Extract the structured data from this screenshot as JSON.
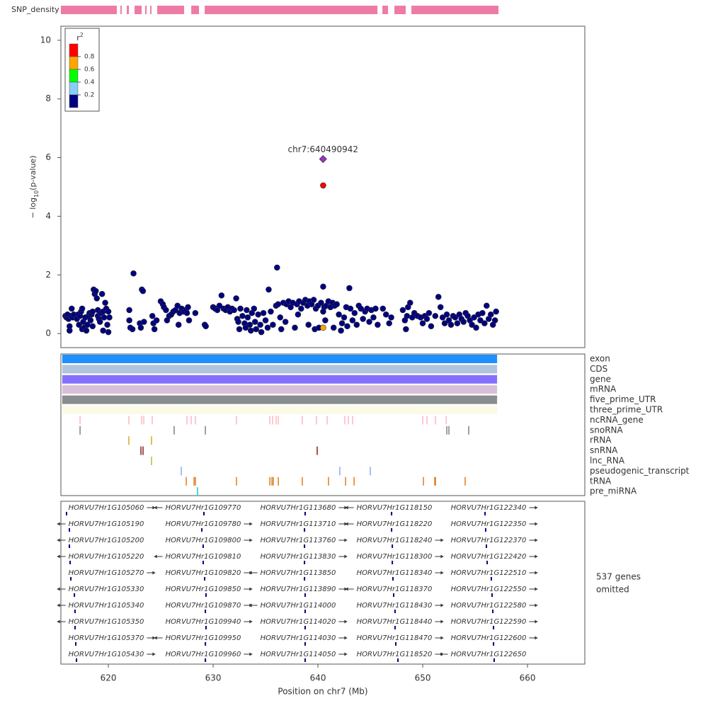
{
  "chart_data": {
    "type": "scatter",
    "snp_density_label": "SNP_density",
    "snp_density_color": "#ee7ba5",
    "snp_density_segments": [
      [
        615.47,
        620.81
      ],
      [
        621.15,
        621.28
      ],
      [
        621.76,
        621.96
      ],
      [
        622.5,
        623.18
      ],
      [
        623.51,
        623.65
      ],
      [
        623.99,
        624.12
      ],
      [
        624.66,
        627.23
      ],
      [
        627.91,
        628.65
      ],
      [
        629.19,
        645.68
      ],
      [
        646.15,
        646.69
      ],
      [
        647.3,
        648.38
      ],
      [
        648.92,
        657.23
      ]
    ],
    "ylabel_prefix": "− log",
    "ylabel_sub": "10",
    "ylabel_suffix": "(p-value)",
    "xlabel": "Position on chr7 (Mb)",
    "xlim": [
      615.47,
      665.47
    ],
    "xticks": [
      620,
      630,
      640,
      650,
      660
    ],
    "ylim": [
      -0.48,
      10.48
    ],
    "yticks": [
      0,
      2,
      4,
      6,
      8,
      10
    ],
    "legend": {
      "title": "r",
      "title_sup": "2",
      "lim": [
        0,
        1
      ],
      "colors": [
        "#ff0000",
        "#ffa500",
        "#00ff00",
        "#87cefa",
        "#000080"
      ],
      "ticks": [
        0.8,
        0.6,
        0.4,
        0.2
      ]
    },
    "series": [
      {
        "color": "#000080",
        "shape": "circle",
        "x": [
          615.9,
          616.0,
          616.1,
          616.2,
          616.3,
          616.3,
          616.4,
          616.5,
          616.6,
          616.7,
          617.0,
          617.1,
          617.2,
          617.3,
          617.4,
          617.5,
          617.5,
          617.6,
          617.7,
          617.8,
          617.9,
          618.0,
          618.1,
          618.2,
          618.3,
          618.4,
          618.5,
          618.5,
          618.6,
          618.7,
          618.8,
          618.9,
          619.0,
          619.0,
          619.1,
          619.2,
          619.3,
          619.4,
          619.5,
          619.5,
          619.6,
          619.7,
          619.8,
          619.9,
          620.0,
          620.0,
          620.1,
          622.0,
          622.0,
          622.1,
          622.3,
          622.4,
          623.0,
          623.1,
          623.2,
          623.3,
          623.4,
          624.2,
          624.3,
          624.4,
          624.6,
          625.0,
          625.2,
          625.3,
          625.5,
          625.6,
          625.8,
          626.0,
          626.2,
          626.4,
          626.6,
          626.7,
          626.8,
          627.0,
          627.2,
          627.4,
          627.5,
          627.6,
          627.7,
          628.3,
          629.2,
          629.3,
          630.0,
          630.2,
          630.4,
          630.6,
          630.8,
          631.0,
          631.2,
          631.4,
          631.6,
          631.8,
          632.0,
          632.2,
          632.3,
          632.4,
          632.5,
          632.6,
          632.8,
          633.0,
          633.1,
          633.2,
          633.3,
          633.5,
          633.6,
          633.7,
          633.9,
          634.0,
          634.1,
          634.3,
          634.5,
          634.6,
          634.8,
          635.0,
          635.2,
          635.3,
          635.5,
          635.7,
          636.0,
          636.1,
          636.2,
          636.4,
          636.5,
          636.7,
          636.9,
          637.0,
          637.2,
          637.4,
          637.6,
          637.8,
          638.0,
          638.1,
          638.2,
          638.4,
          638.6,
          638.8,
          639.0,
          639.1,
          639.2,
          639.4,
          639.6,
          639.7,
          639.8,
          640.0,
          640.1,
          640.3,
          640.5,
          640.5,
          640.6,
          640.7,
          640.8,
          641.0,
          641.2,
          641.4,
          641.5,
          641.6,
          641.8,
          642.0,
          642.2,
          642.3,
          642.5,
          642.7,
          642.8,
          643.0,
          643.1,
          643.3,
          643.5,
          643.7,
          643.9,
          644.1,
          644.3,
          644.5,
          644.7,
          644.9,
          645.1,
          645.3,
          645.5,
          645.7,
          646.2,
          646.5,
          646.8,
          647.0,
          648.1,
          648.3,
          648.4,
          648.5,
          648.6,
          648.8,
          649.0,
          649.2,
          649.5,
          649.8,
          650.0,
          650.2,
          650.4,
          650.6,
          650.8,
          651.2,
          651.5,
          651.7,
          651.9,
          652.1,
          652.3,
          652.5,
          652.7,
          652.9,
          653.1,
          653.3,
          653.5,
          653.7,
          653.9,
          654.1,
          654.3,
          654.5,
          654.7,
          654.9,
          655.1,
          655.3,
          655.5,
          655.7,
          655.9,
          656.1,
          656.3,
          656.5,
          656.7,
          656.9,
          657.0
        ],
        "values": [
          0.6,
          0.55,
          0.65,
          0.5,
          0.1,
          0.25,
          0.6,
          0.85,
          0.55,
          0.65,
          0.5,
          0.65,
          0.3,
          0.6,
          0.75,
          0.85,
          0.15,
          0.4,
          0.2,
          0.55,
          0.1,
          0.3,
          0.6,
          0.7,
          0.45,
          0.65,
          0.75,
          0.25,
          1.5,
          1.35,
          1.45,
          1.2,
          0.6,
          0.8,
          0.5,
          0.4,
          0.7,
          1.35,
          0.1,
          0.75,
          0.55,
          1.05,
          0.85,
          0.3,
          0.75,
          0.05,
          0.55,
          0.8,
          0.45,
          0.2,
          0.15,
          2.05,
          0.35,
          0.2,
          1.5,
          1.45,
          0.4,
          0.6,
          0.35,
          0.15,
          0.45,
          1.1,
          1.0,
          0.9,
          0.8,
          0.45,
          0.6,
          0.65,
          0.75,
          0.8,
          0.95,
          0.3,
          0.7,
          0.85,
          0.75,
          0.8,
          0.7,
          0.9,
          0.45,
          0.7,
          0.3,
          0.25,
          0.9,
          0.85,
          0.8,
          0.95,
          1.3,
          0.85,
          0.8,
          0.9,
          0.75,
          0.85,
          0.8,
          1.2,
          0.5,
          0.4,
          0.15,
          0.85,
          0.6,
          0.35,
          0.2,
          0.8,
          0.55,
          0.3,
          0.1,
          0.7,
          0.85,
          0.4,
          0.15,
          0.65,
          0.3,
          0.05,
          0.7,
          0.45,
          0.2,
          1.5,
          0.75,
          0.3,
          0.95,
          2.25,
          1.0,
          0.55,
          0.15,
          1.05,
          0.4,
          1.0,
          1.1,
          0.9,
          1.05,
          0.2,
          1.0,
          0.65,
          1.1,
          0.85,
          1.05,
          1.15,
          0.95,
          0.3,
          1.1,
          1.0,
          1.15,
          0.15,
          0.85,
          0.95,
          0.2,
          1.05,
          1.6,
          0.75,
          0.9,
          0.45,
          0.95,
          1.1,
          0.9,
          1.05,
          0.2,
          0.95,
          1.0,
          0.65,
          0.1,
          0.35,
          0.55,
          0.9,
          0.25,
          1.55,
          0.85,
          0.45,
          0.7,
          0.3,
          0.95,
          0.85,
          0.5,
          0.75,
          0.85,
          0.4,
          0.8,
          0.55,
          0.85,
          0.3,
          0.85,
          0.65,
          0.35,
          0.55,
          0.8,
          0.45,
          0.15,
          0.6,
          0.9,
          1.05,
          0.55,
          0.7,
          0.6,
          0.55,
          0.35,
          0.6,
          0.5,
          0.7,
          0.25,
          0.6,
          1.25,
          0.9,
          0.55,
          0.35,
          0.65,
          0.45,
          0.3,
          0.6,
          0.55,
          0.35,
          0.65,
          0.5,
          0.4,
          0.7,
          0.6,
          0.45,
          0.3,
          0.55,
          0.2,
          0.65,
          0.45,
          0.7,
          0.35,
          0.95,
          0.5,
          0.65,
          0.3,
          0.45,
          0.75
        ]
      },
      {
        "color": "#ffa500",
        "shape": "circle",
        "x": [
          640.5
        ],
        "values": [
          0.2
        ]
      },
      {
        "color": "#ff0000",
        "shape": "circle",
        "x": [
          640.5
        ],
        "values": [
          5.05
        ]
      },
      {
        "color": "#9932cc",
        "shape": "diamond",
        "x": [
          640.49
        ],
        "values": [
          5.95
        ],
        "label": "chr7:640490942"
      }
    ],
    "tracks": [
      {
        "name": "exon",
        "color": "#1e90ff",
        "range": [
          615.6,
          657.1
        ]
      },
      {
        "name": "CDS",
        "color": "#b0c4de",
        "range": [
          615.6,
          657.1
        ]
      },
      {
        "name": "gene",
        "color": "#8470ff",
        "range": [
          615.6,
          657.1
        ]
      },
      {
        "name": "mRNA",
        "color": "#d8bfd8",
        "range": [
          615.6,
          657.1
        ]
      },
      {
        "name": "five_prime_UTR",
        "color": "#878c8c",
        "range": [
          615.6,
          657.1
        ]
      },
      {
        "name": "three_prime_UTR",
        "color": "#fafae6",
        "range": [
          615.6,
          657.1
        ]
      },
      {
        "name": "ncRNA_gene",
        "color": "#ffb6c1",
        "positions": [
          617.3,
          621.96,
          623.18,
          623.38,
          624.19,
          627.5,
          627.91,
          628.31,
          632.23,
          635.41,
          635.68,
          636.01,
          636.22,
          638.51,
          639.86,
          640.88,
          642.57,
          642.91,
          643.31,
          650.0,
          650.41,
          651.22,
          652.24
        ]
      },
      {
        "name": "snoRNA",
        "color": "#808080",
        "positions": [
          617.3,
          626.28,
          629.26,
          652.3,
          652.5,
          654.39
        ]
      },
      {
        "name": "rRNA",
        "color": "#daa520",
        "positions": [
          621.96,
          624.12
        ]
      },
      {
        "name": "snRNA",
        "color": "#8b1a1a",
        "positions": [
          623.11,
          623.31,
          639.93
        ]
      },
      {
        "name": "lnc_RNA",
        "color": "#9acd32",
        "positions": [
          624.12
        ]
      },
      {
        "name": "pseudogenic_transcript",
        "color": "#87aee6",
        "positions": [
          626.96,
          642.09,
          645.0
        ]
      },
      {
        "name": "tRNA",
        "color": "#e07b20",
        "positions": [
          627.43,
          628.18,
          628.31,
          632.23,
          635.41,
          635.61,
          635.74,
          636.22,
          638.51,
          641.01,
          642.64,
          643.45,
          650.07,
          651.15,
          651.22,
          654.05
        ]
      },
      {
        "name": "pre_miRNA",
        "color": "#00ced1",
        "positions": [
          628.51
        ]
      }
    ],
    "genes": [
      {
        "name": "HORVU7Hr1G105060",
        "pos": 616.01,
        "strand": "+"
      },
      {
        "name": "HORVU7Hr1G105190",
        "pos": 616.28,
        "strand": "-"
      },
      {
        "name": "HORVU7Hr1G105200",
        "pos": 616.28,
        "strand": "-"
      },
      {
        "name": "HORVU7Hr1G105220",
        "pos": 616.35,
        "strand": "-"
      },
      {
        "name": "HORVU7Hr1G105270",
        "pos": 616.42,
        "strand": "+"
      },
      {
        "name": "HORVU7Hr1G105330",
        "pos": 616.76,
        "strand": "-"
      },
      {
        "name": "HORVU7Hr1G105340",
        "pos": 616.82,
        "strand": "-"
      },
      {
        "name": "HORVU7Hr1G105350",
        "pos": 616.82,
        "strand": "-"
      },
      {
        "name": "HORVU7Hr1G105370",
        "pos": 616.89,
        "strand": "+"
      },
      {
        "name": "HORVU7Hr1G105430",
        "pos": 616.96,
        "strand": "+"
      },
      {
        "name": "HORVU7Hr1G109770",
        "pos": 629.12,
        "strand": "-"
      },
      {
        "name": "HORVU7Hr1G109780",
        "pos": 628.92,
        "strand": "+"
      },
      {
        "name": "HORVU7Hr1G109800",
        "pos": 629.05,
        "strand": "+"
      },
      {
        "name": "HORVU7Hr1G109810",
        "pos": 629.05,
        "strand": "-"
      },
      {
        "name": "HORVU7Hr1G109820",
        "pos": 629.19,
        "strand": "+"
      },
      {
        "name": "HORVU7Hr1G109850",
        "pos": 629.32,
        "strand": "+"
      },
      {
        "name": "HORVU7Hr1G109870",
        "pos": 629.26,
        "strand": "+"
      },
      {
        "name": "HORVU7Hr1G109940",
        "pos": 629.32,
        "strand": "+"
      },
      {
        "name": "HORVU7Hr1G109950",
        "pos": 629.26,
        "strand": "-"
      },
      {
        "name": "HORVU7Hr1G109960",
        "pos": 629.26,
        "strand": "+"
      },
      {
        "name": "HORVU7Hr1G113680",
        "pos": 638.78,
        "strand": "+"
      },
      {
        "name": "HORVU7Hr1G113710",
        "pos": 638.72,
        "strand": "+"
      },
      {
        "name": "HORVU7Hr1G113760",
        "pos": 638.72,
        "strand": "+"
      },
      {
        "name": "HORVU7Hr1G113830",
        "pos": 638.72,
        "strand": "+"
      },
      {
        "name": "HORVU7Hr1G113850",
        "pos": 638.72,
        "strand": "-"
      },
      {
        "name": "HORVU7Hr1G113890",
        "pos": 638.78,
        "strand": "+"
      },
      {
        "name": "HORVU7Hr1G114000",
        "pos": 638.78,
        "strand": "-"
      },
      {
        "name": "HORVU7Hr1G114020",
        "pos": 638.78,
        "strand": "+"
      },
      {
        "name": "HORVU7Hr1G114030",
        "pos": 638.78,
        "strand": "+"
      },
      {
        "name": "HORVU7Hr1G114050",
        "pos": 638.78,
        "strand": "+"
      },
      {
        "name": "HORVU7Hr1G118150",
        "pos": 647.03,
        "strand": "-"
      },
      {
        "name": "HORVU7Hr1G118220",
        "pos": 647.03,
        "strand": "-"
      },
      {
        "name": "HORVU7Hr1G118240",
        "pos": 647.1,
        "strand": "+"
      },
      {
        "name": "HORVU7Hr1G118300",
        "pos": 647.1,
        "strand": "+"
      },
      {
        "name": "HORVU7Hr1G118340",
        "pos": 647.16,
        "strand": "+"
      },
      {
        "name": "HORVU7Hr1G118370",
        "pos": 647.23,
        "strand": "-"
      },
      {
        "name": "HORVU7Hr1G118430",
        "pos": 647.36,
        "strand": "+"
      },
      {
        "name": "HORVU7Hr1G118440",
        "pos": 647.36,
        "strand": "+"
      },
      {
        "name": "HORVU7Hr1G118470",
        "pos": 647.43,
        "strand": "+"
      },
      {
        "name": "HORVU7Hr1G118520",
        "pos": 647.64,
        "strand": "+"
      },
      {
        "name": "HORVU7Hr1G122340",
        "pos": 655.95,
        "strand": "+"
      },
      {
        "name": "HORVU7Hr1G122350",
        "pos": 656.01,
        "strand": "+"
      },
      {
        "name": "HORVU7Hr1G122370",
        "pos": 656.08,
        "strand": "+"
      },
      {
        "name": "HORVU7Hr1G122420",
        "pos": 656.15,
        "strand": "+"
      },
      {
        "name": "HORVU7Hr1G122510",
        "pos": 656.55,
        "strand": "+"
      },
      {
        "name": "HORVU7Hr1G122550",
        "pos": 656.62,
        "strand": "+"
      },
      {
        "name": "HORVU7Hr1G122580",
        "pos": 656.69,
        "strand": "+"
      },
      {
        "name": "HORVU7Hr1G122590",
        "pos": 656.76,
        "strand": "+"
      },
      {
        "name": "HORVU7Hr1G122600",
        "pos": 656.76,
        "strand": "+"
      },
      {
        "name": "HORVU7Hr1G122650",
        "pos": 656.82,
        "strand": "-"
      }
    ],
    "genes_omitted": [
      "537 genes",
      "omitted"
    ]
  }
}
